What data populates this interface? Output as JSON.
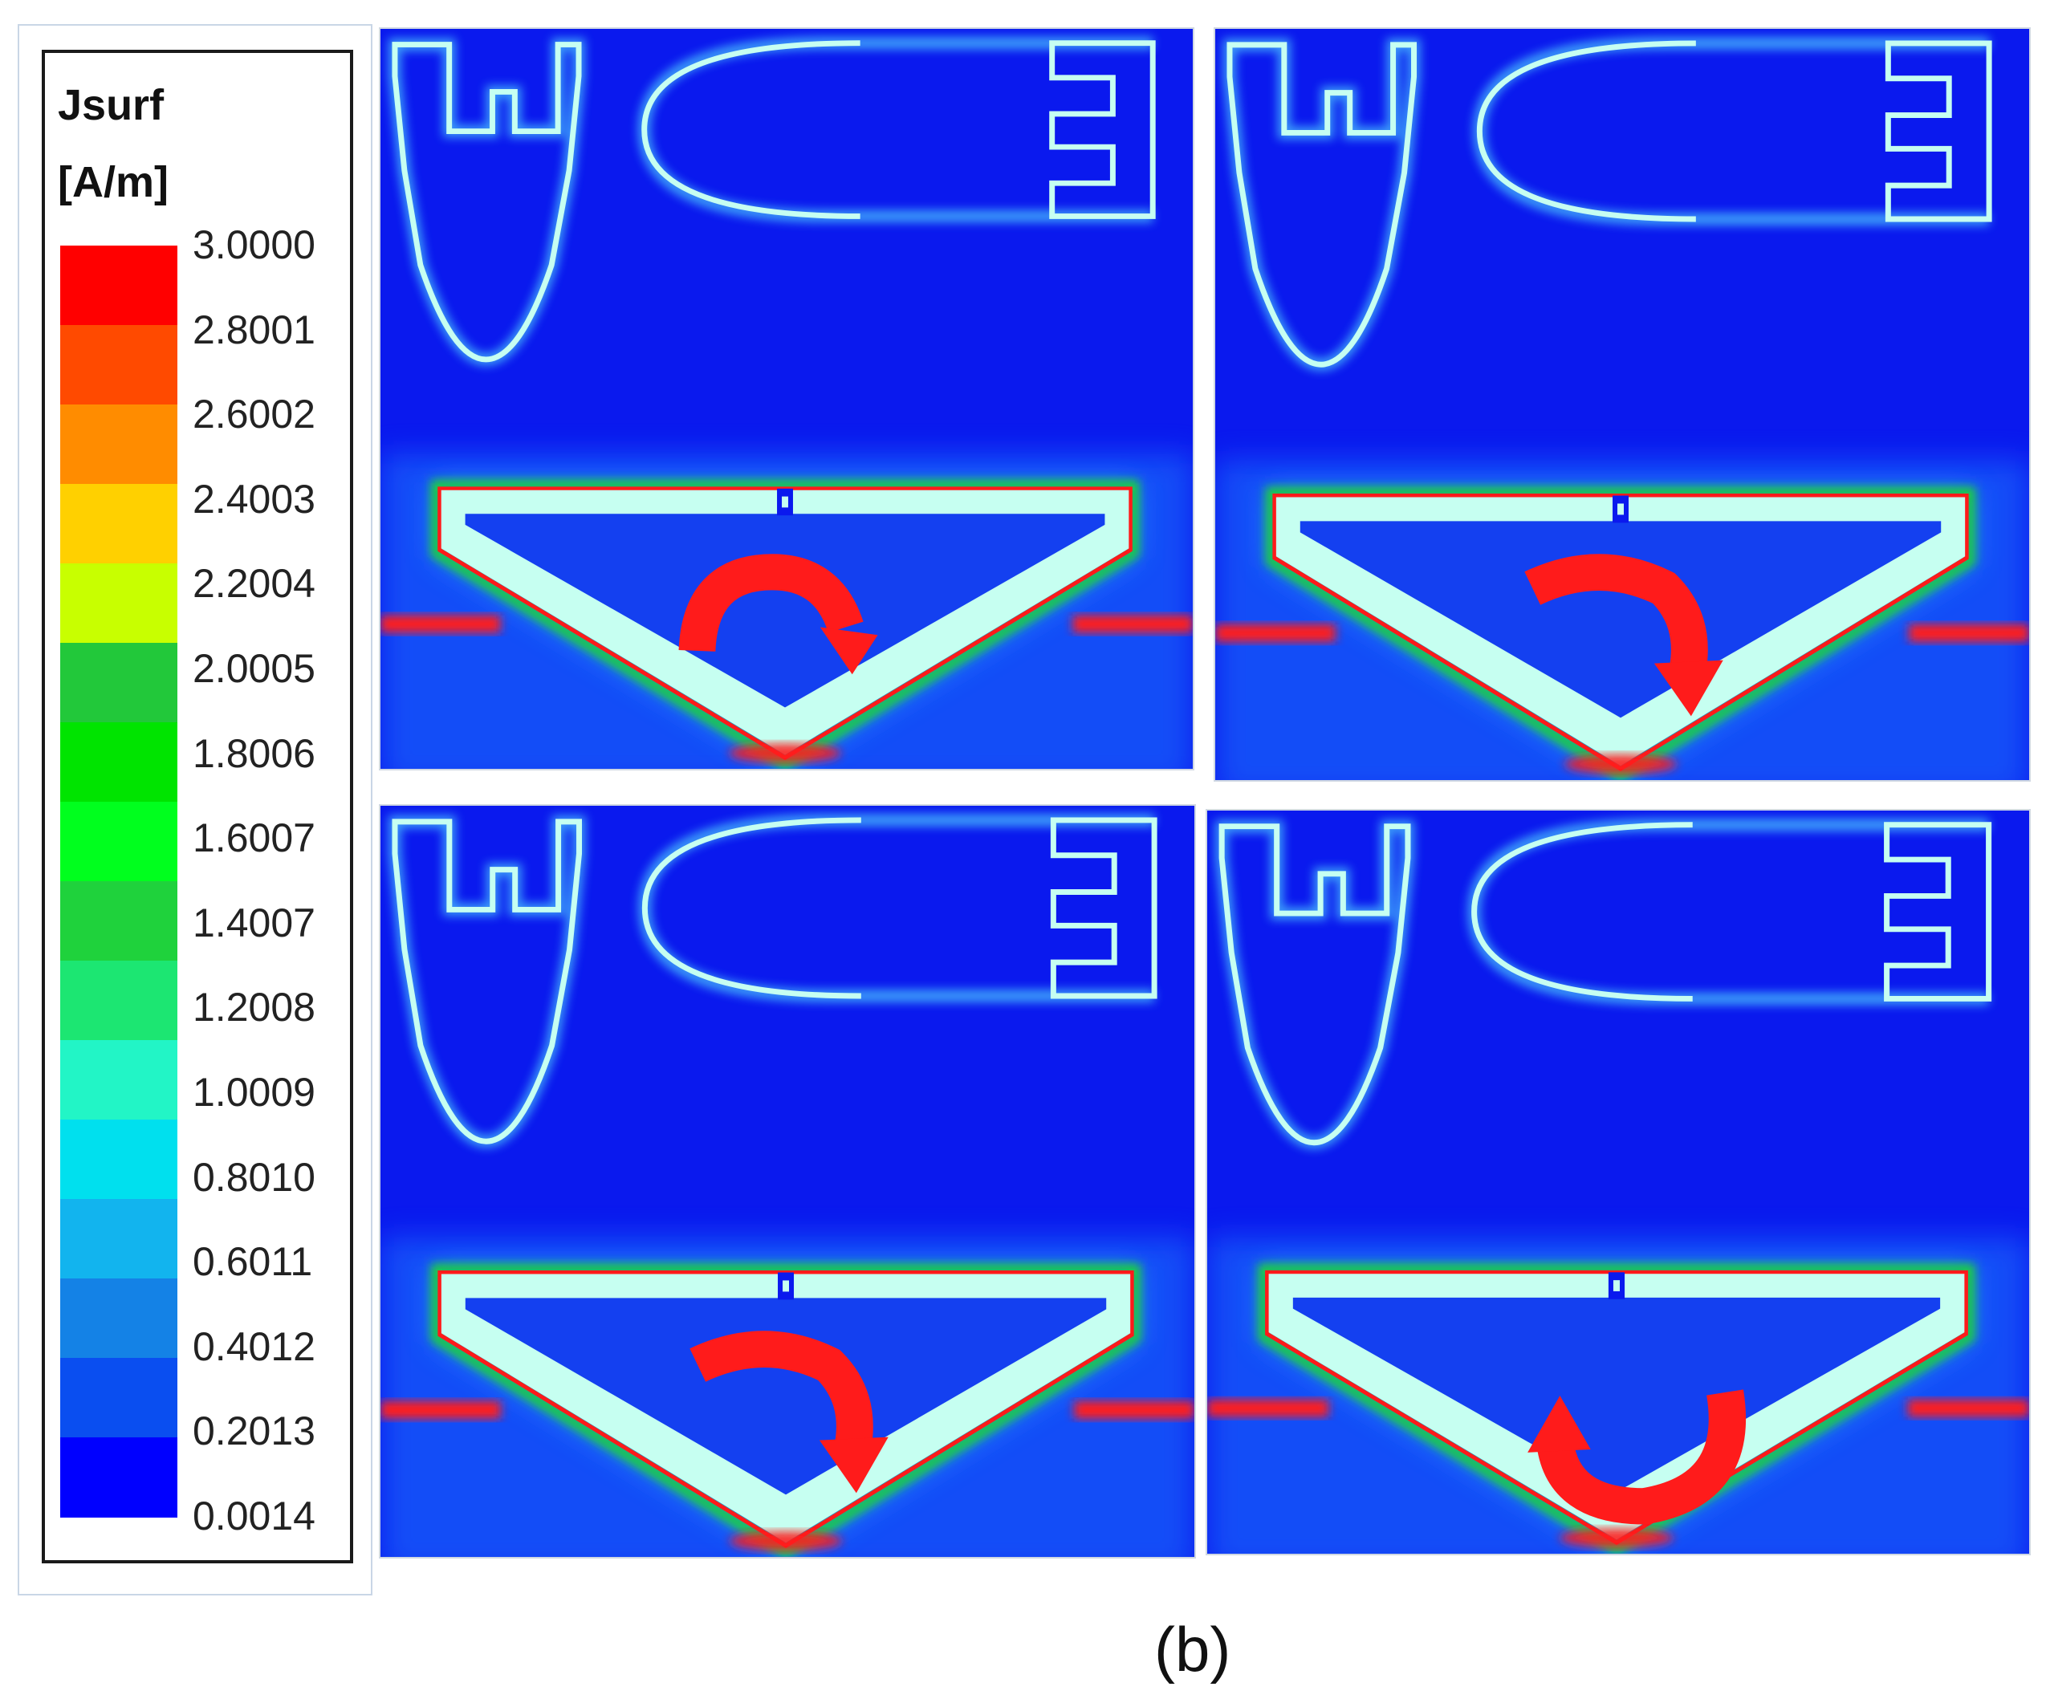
{
  "legend": {
    "quantity": "Jsurf",
    "unit": "[A/m]",
    "ticks": [
      "3.0000",
      "2.8001",
      "2.6002",
      "2.4003",
      "2.2004",
      "2.0005",
      "1.8006",
      "1.6007",
      "1.4007",
      "1.2008",
      "1.0009",
      "0.8010",
      "0.6011",
      "0.4012",
      "0.2013",
      "0.0014"
    ],
    "colors": [
      "#ff0000",
      "#ff4a00",
      "#ff8c00",
      "#ffd000",
      "#c8ff00",
      "#22c83a",
      "#00e400",
      "#00ff1e",
      "#1fd23c",
      "#1ce672",
      "#22f5c6",
      "#00e0ee",
      "#12b4ee",
      "#1482e6",
      "#0a4ef0",
      "#0000ff"
    ]
  },
  "panels": [
    {
      "arrow": "clockwise-right"
    },
    {
      "arrow": "clockwise-down"
    },
    {
      "arrow": "clockwise-down"
    },
    {
      "arrow": "counter-clockwise"
    }
  ],
  "colors": {
    "background": "#0a19ee",
    "metal": "#c6fff1",
    "hot": "#ff1a1a",
    "warm": "#1fd23c",
    "halo": "#1b78ff",
    "arrow": "#ff1b1b"
  },
  "caption": "(b)"
}
